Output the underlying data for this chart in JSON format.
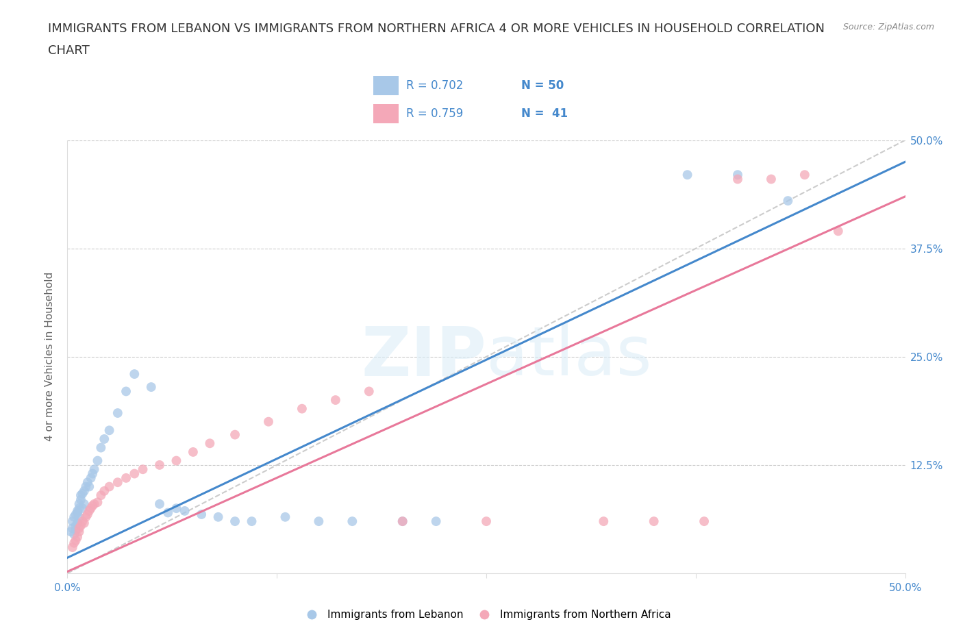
{
  "title_line1": "IMMIGRANTS FROM LEBANON VS IMMIGRANTS FROM NORTHERN AFRICA 4 OR MORE VEHICLES IN HOUSEHOLD CORRELATION",
  "title_line2": "CHART",
  "source_text": "Source: ZipAtlas.com",
  "ylabel": "4 or more Vehicles in Household",
  "xlim": [
    0.0,
    0.5
  ],
  "ylim": [
    0.0,
    0.5
  ],
  "ytick_values": [
    0.0,
    0.125,
    0.25,
    0.375,
    0.5
  ],
  "ytick_labels": [
    "",
    "12.5%",
    "25.0%",
    "37.5%",
    "50.0%"
  ],
  "xtick_values": [
    0.0,
    0.125,
    0.25,
    0.375,
    0.5
  ],
  "xtick_labels": [
    "0.0%",
    "",
    "",
    "",
    "50.0%"
  ],
  "grid_color": "#cccccc",
  "color_lebanon": "#a8c8e8",
  "color_n_africa": "#f4a8b8",
  "line_color_lebanon": "#4488cc",
  "line_color_n_africa": "#e8789a",
  "diag_color": "#cccccc",
  "background_color": "#ffffff",
  "tick_color": "#4488cc",
  "ylabel_color": "#666666",
  "title_fontsize": 13,
  "label_fontsize": 11,
  "tick_fontsize": 11,
  "legend_R1": "R = 0.702",
  "legend_N1": "N = 50",
  "legend_R2": "R = 0.759",
  "legend_N2": "N =  41",
  "leb_line_x0": 0.0,
  "leb_line_y0": 0.018,
  "leb_line_x1": 0.5,
  "leb_line_y1": 0.475,
  "nafr_line_x0": 0.0,
  "nafr_line_y0": 0.002,
  "nafr_line_x1": 0.5,
  "nafr_line_y1": 0.435,
  "leb_x": [
    0.002,
    0.003,
    0.003,
    0.004,
    0.004,
    0.005,
    0.005,
    0.005,
    0.006,
    0.006,
    0.006,
    0.007,
    0.007,
    0.007,
    0.008,
    0.008,
    0.009,
    0.009,
    0.01,
    0.01,
    0.011,
    0.012,
    0.013,
    0.014,
    0.015,
    0.016,
    0.018,
    0.02,
    0.022,
    0.025,
    0.03,
    0.035,
    0.04,
    0.05,
    0.055,
    0.06,
    0.065,
    0.07,
    0.08,
    0.09,
    0.1,
    0.11,
    0.13,
    0.15,
    0.17,
    0.2,
    0.22,
    0.37,
    0.4,
    0.43
  ],
  "leb_y": [
    0.048,
    0.052,
    0.06,
    0.045,
    0.065,
    0.05,
    0.055,
    0.068,
    0.058,
    0.07,
    0.072,
    0.065,
    0.08,
    0.075,
    0.085,
    0.09,
    0.092,
    0.075,
    0.095,
    0.08,
    0.1,
    0.105,
    0.1,
    0.11,
    0.115,
    0.12,
    0.13,
    0.145,
    0.155,
    0.165,
    0.185,
    0.21,
    0.23,
    0.215,
    0.08,
    0.07,
    0.075,
    0.072,
    0.068,
    0.065,
    0.06,
    0.06,
    0.065,
    0.06,
    0.06,
    0.06,
    0.06,
    0.46,
    0.46,
    0.43
  ],
  "nafr_x": [
    0.003,
    0.004,
    0.005,
    0.006,
    0.007,
    0.007,
    0.008,
    0.009,
    0.01,
    0.011,
    0.012,
    0.013,
    0.014,
    0.015,
    0.016,
    0.018,
    0.02,
    0.022,
    0.025,
    0.03,
    0.035,
    0.04,
    0.045,
    0.055,
    0.065,
    0.075,
    0.085,
    0.1,
    0.12,
    0.14,
    0.16,
    0.18,
    0.2,
    0.25,
    0.32,
    0.35,
    0.38,
    0.4,
    0.42,
    0.44,
    0.46
  ],
  "nafr_y": [
    0.03,
    0.035,
    0.038,
    0.042,
    0.048,
    0.052,
    0.055,
    0.06,
    0.058,
    0.065,
    0.068,
    0.072,
    0.075,
    0.078,
    0.08,
    0.082,
    0.09,
    0.095,
    0.1,
    0.105,
    0.11,
    0.115,
    0.12,
    0.125,
    0.13,
    0.14,
    0.15,
    0.16,
    0.175,
    0.19,
    0.2,
    0.21,
    0.06,
    0.06,
    0.06,
    0.06,
    0.06,
    0.455,
    0.455,
    0.46,
    0.395
  ]
}
